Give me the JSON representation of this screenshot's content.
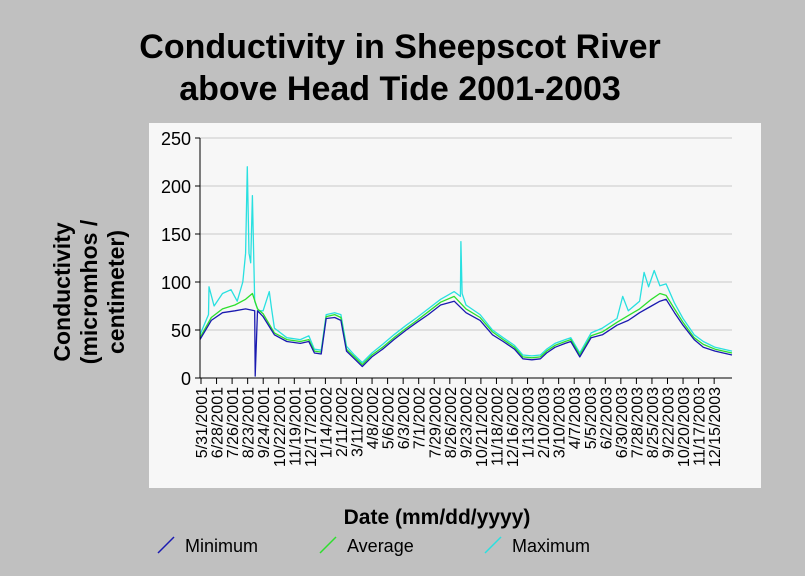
{
  "chart_data": {
    "type": "line",
    "title_lines": [
      "Conductivity in Sheepscot River",
      "above Head Tide 2001-2003"
    ],
    "ylabel_lines": [
      "Conductivity",
      "(micromhos /",
      "centimeter)"
    ],
    "xlabel": "Date (mm/dd/yyyy)",
    "ylim": [
      0,
      250
    ],
    "yticks": [
      0,
      50,
      100,
      150,
      200,
      250
    ],
    "grid": true,
    "legend_position": "bottom",
    "x_start": "5/31/2001",
    "x_end": "12/31/2003",
    "x_tick_labels": [
      "5/31/2001",
      "6/28/2001",
      "7/26/2001",
      "8/23/2001",
      "9/24/2001",
      "10/22/2001",
      "11/19/2001",
      "12/17/2001",
      "1/14/2002",
      "2/11/2002",
      "3/11/2002",
      "4/8/2002",
      "5/6/2002",
      "6/3/2002",
      "7/1/2002",
      "7/29/2002",
      "8/26/2002",
      "9/23/2002",
      "10/21/2002",
      "11/18/2002",
      "12/16/2002",
      "1/13/2003",
      "2/10/2003",
      "3/10/2003",
      "4/7/2003",
      "5/5/2003",
      "6/2/2003",
      "6/30/2003",
      "7/28/2003",
      "8/25/2003",
      "9/22/2003",
      "10/20/2003",
      "11/17/2003",
      "12/15/2003"
    ],
    "series": [
      {
        "name": "Minimum",
        "color": "#1a1ab0",
        "x": [
          "5/31/2001",
          "6/20/2001",
          "7/10/2001",
          "8/1/2001",
          "8/20/2001",
          "9/5/2001",
          "9/6/2001",
          "9/10/2001",
          "9/20/2001",
          "10/10/2001",
          "11/1/2001",
          "11/25/2001",
          "12/10/2001",
          "12/20/2001",
          "1/1/2002",
          "1/10/2002",
          "1/25/2002",
          "2/5/2002",
          "2/15/2002",
          "3/1/2002",
          "3/15/2002",
          "4/1/2002",
          "4/20/2002",
          "5/10/2002",
          "6/1/2002",
          "6/20/2002",
          "7/10/2002",
          "8/1/2002",
          "8/25/2002",
          "9/15/2002",
          "10/10/2002",
          "11/1/2002",
          "11/20/2002",
          "12/10/2002",
          "12/25/2002",
          "1/10/2003",
          "1/25/2003",
          "2/5/2003",
          "2/20/2003",
          "3/10/2003",
          "3/20/2003",
          "4/5/2003",
          "4/25/2003",
          "5/15/2003",
          "6/10/2003",
          "6/30/2003",
          "7/20/2003",
          "8/10/2003",
          "8/25/2003",
          "9/5/2003",
          "9/20/2003",
          "10/5/2003",
          "10/25/2003",
          "11/10/2003",
          "12/1/2003",
          "12/31/2003"
        ],
        "y": [
          40,
          60,
          68,
          70,
          72,
          70,
          2,
          70,
          64,
          45,
          38,
          36,
          38,
          26,
          25,
          62,
          63,
          60,
          28,
          20,
          12,
          22,
          30,
          40,
          50,
          58,
          66,
          76,
          80,
          68,
          60,
          45,
          38,
          30,
          20,
          19,
          20,
          26,
          32,
          36,
          38,
          22,
          42,
          45,
          55,
          60,
          68,
          75,
          80,
          82,
          68,
          55,
          40,
          32,
          28,
          24
        ]
      },
      {
        "name": "Average",
        "color": "#2ddf2d",
        "x": [
          "5/31/2001",
          "6/20/2001",
          "7/10/2001",
          "8/1/2001",
          "8/20/2001",
          "9/1/2001",
          "9/10/2001",
          "9/20/2001",
          "10/10/2001",
          "11/1/2001",
          "11/25/2001",
          "12/10/2001",
          "12/20/2001",
          "1/1/2002",
          "1/10/2002",
          "1/25/2002",
          "2/5/2002",
          "2/15/2002",
          "3/1/2002",
          "3/15/2002",
          "4/1/2002",
          "4/20/2002",
          "5/10/2002",
          "6/1/2002",
          "6/20/2002",
          "7/10/2002",
          "8/1/2002",
          "8/25/2002",
          "9/15/2002",
          "10/10/2002",
          "11/1/2002",
          "11/20/2002",
          "12/10/2002",
          "12/25/2002",
          "1/10/2003",
          "1/25/2003",
          "2/5/2003",
          "2/20/2003",
          "3/10/2003",
          "3/20/2003",
          "4/5/2003",
          "4/25/2003",
          "5/15/2003",
          "6/10/2003",
          "6/30/2003",
          "7/20/2003",
          "8/10/2003",
          "8/25/2003",
          "9/5/2003",
          "9/20/2003",
          "10/5/2003",
          "10/25/2003",
          "11/10/2003",
          "12/1/2003",
          "12/31/2003"
        ],
        "y": [
          42,
          63,
          72,
          76,
          82,
          88,
          72,
          67,
          47,
          40,
          38,
          40,
          28,
          27,
          64,
          66,
          63,
          30,
          22,
          14,
          24,
          32,
          42,
          52,
          60,
          69,
          79,
          85,
          72,
          63,
          48,
          40,
          32,
          22,
          21,
          22,
          28,
          34,
          38,
          40,
          24,
          44,
          48,
          58,
          65,
          72,
          82,
          88,
          86,
          72,
          58,
          42,
          35,
          30,
          26
        ]
      },
      {
        "name": "Maximum",
        "color": "#29e0e0",
        "x": [
          "5/31/2001",
          "6/15/2001",
          "6/16/2001",
          "6/25/2001",
          "7/10/2001",
          "7/25/2001",
          "8/5/2001",
          "8/15/2001",
          "8/20/2001",
          "8/23/2001",
          "8/26/2001",
          "8/29/2001",
          "9/1/2001",
          "9/5/2001",
          "9/8/2001",
          "9/12/2001",
          "9/20/2001",
          "10/1/2001",
          "10/5/2001",
          "10/10/2001",
          "11/1/2001",
          "11/25/2001",
          "12/10/2001",
          "12/20/2001",
          "1/1/2002",
          "1/10/2002",
          "1/25/2002",
          "2/5/2002",
          "2/15/2002",
          "3/1/2002",
          "3/15/2002",
          "4/1/2002",
          "4/20/2002",
          "5/10/2002",
          "6/1/2002",
          "6/20/2002",
          "7/10/2002",
          "8/1/2002",
          "8/25/2002",
          "9/5/2002",
          "9/6/2002",
          "9/8/2002",
          "9/15/2002",
          "10/10/2002",
          "11/1/2002",
          "11/20/2002",
          "12/10/2002",
          "12/25/2002",
          "1/10/2003",
          "1/25/2003",
          "2/5/2003",
          "2/20/2003",
          "3/10/2003",
          "3/20/2003",
          "4/5/2003",
          "4/25/2003",
          "5/15/2003",
          "6/10/2003",
          "6/20/2003",
          "6/30/2003",
          "7/20/2003",
          "7/28/2003",
          "8/5/2003",
          "8/15/2003",
          "8/25/2003",
          "9/5/2003",
          "9/20/2003",
          "10/5/2003",
          "10/25/2003",
          "11/10/2003",
          "12/1/2003",
          "12/31/2003"
        ],
        "y": [
          45,
          66,
          95,
          75,
          88,
          92,
          80,
          100,
          130,
          220,
          130,
          120,
          190,
          80,
          75,
          70,
          70,
          90,
          72,
          52,
          42,
          40,
          44,
          30,
          29,
          66,
          68,
          66,
          33,
          24,
          16,
          26,
          35,
          45,
          55,
          63,
          72,
          82,
          90,
          85,
          142,
          88,
          76,
          66,
          50,
          42,
          34,
          24,
          23,
          24,
          30,
          36,
          40,
          42,
          26,
          47,
          52,
          62,
          85,
          70,
          80,
          110,
          95,
          112,
          96,
          98,
          78,
          62,
          45,
          38,
          32,
          28
        ]
      }
    ]
  }
}
